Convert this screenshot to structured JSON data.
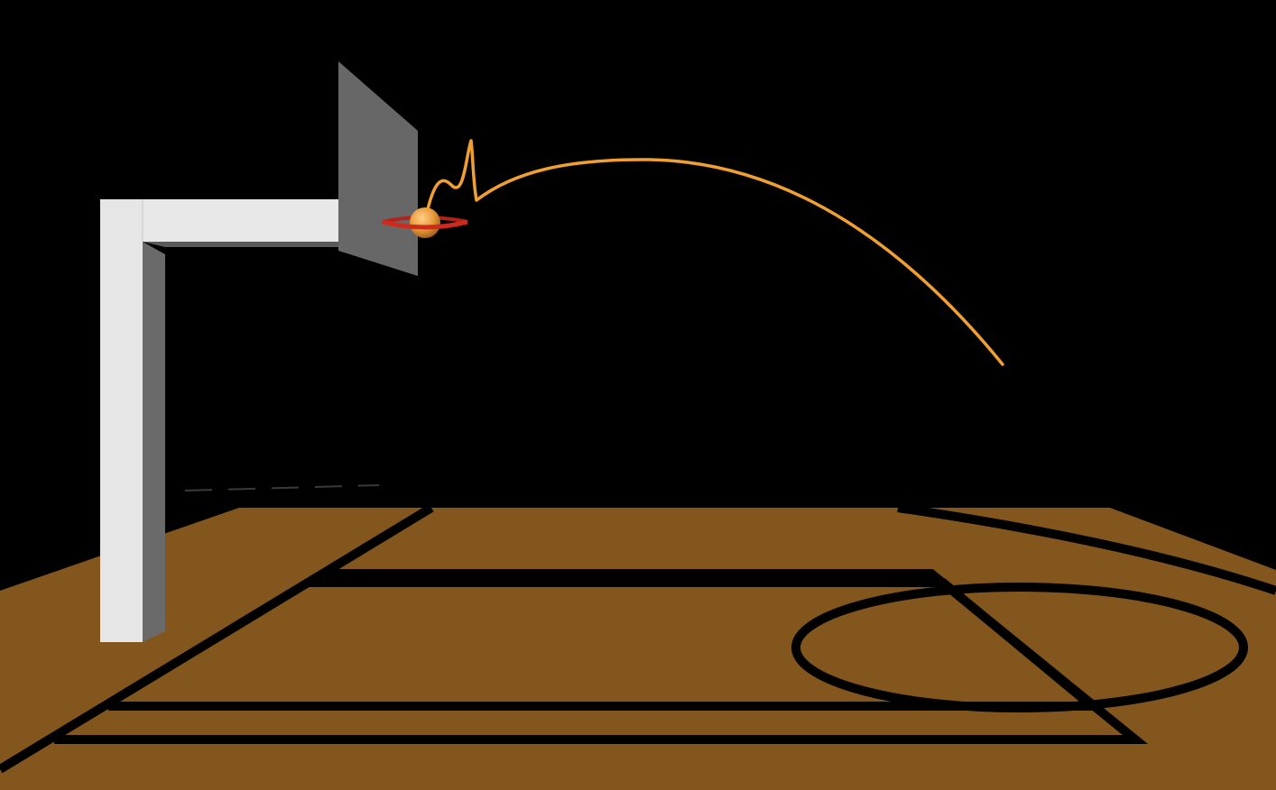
{
  "scene": {
    "type": "3d-basketball-shot-trajectory",
    "colors": {
      "background": "#000000",
      "court": "#83561d",
      "court_lines": "#000000",
      "pole_front": "#e6e6e6",
      "pole_side": "#6a6a6a",
      "backboard": "#676767",
      "rim": "#c8261c",
      "ball": "#f0a040",
      "trajectory": "#f0a030"
    },
    "objects": [
      {
        "name": "court-floor"
      },
      {
        "name": "court-lines"
      },
      {
        "name": "hoop-pole"
      },
      {
        "name": "backboard"
      },
      {
        "name": "rim"
      },
      {
        "name": "basketball"
      },
      {
        "name": "shot-trajectory"
      }
    ]
  }
}
